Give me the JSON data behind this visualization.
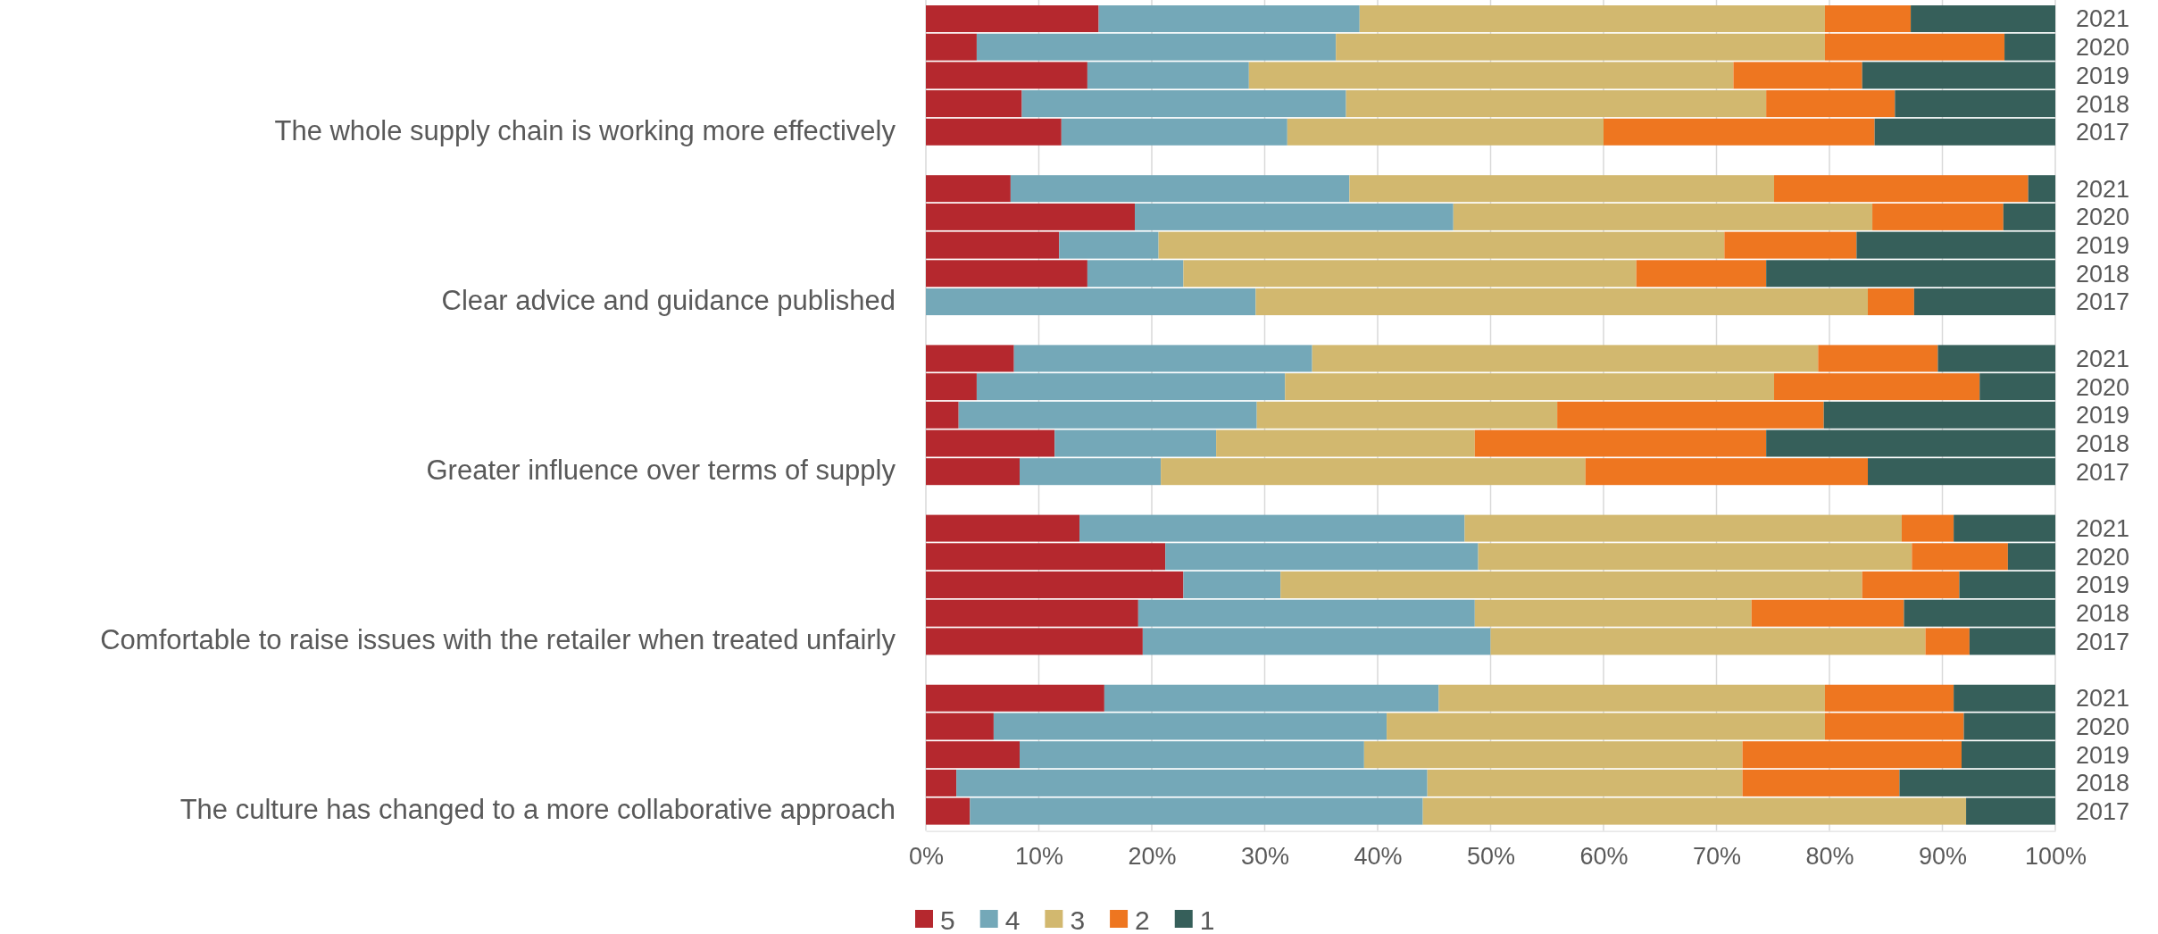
{
  "chart_data": {
    "type": "bar",
    "orientation": "horizontal",
    "stacked": true,
    "categories": [
      "2021",
      "2020",
      "2019",
      "2018",
      "2017",
      null,
      "2021",
      "2020",
      "2019",
      "2018",
      "2017",
      null,
      "2021",
      "2020",
      "2019",
      "2018",
      "2017",
      null,
      "2021",
      "2020",
      "2019",
      "2018",
      "2017",
      null,
      "2021",
      "2020",
      "2019",
      "2018",
      "2017"
    ],
    "annotations": [
      "The whole supply chain is working more effectively",
      "Clear advice and guidance published",
      "Greater influence over terms of supply",
      "Comfortable to raise issues with the retailer when treated unfairly",
      "The culture has changed to a more collaborative approach"
    ],
    "series": [
      {
        "name": "5",
        "color": "#b5282e",
        "values": [
          15.3,
          4.5,
          14.3,
          8.5,
          12,
          null,
          7.5,
          18.5,
          11.8,
          14.3,
          0,
          null,
          7.8,
          4.5,
          2.9,
          11.4,
          8.3,
          null,
          13.6,
          21.2,
          22.8,
          18.8,
          19.2,
          null,
          15.8,
          6,
          8.3,
          2.7,
          3.9
        ]
      },
      {
        "name": "4",
        "color": "#74a8b8",
        "values": [
          23.1,
          31.8,
          14.3,
          28.7,
          20,
          null,
          30,
          28.2,
          8.8,
          8.5,
          29.2,
          null,
          26.4,
          27.3,
          26.4,
          14.3,
          12.5,
          null,
          34.1,
          27.7,
          8.6,
          29.8,
          30.8,
          null,
          29.6,
          34.8,
          30.5,
          41.7,
          40.1
        ]
      },
      {
        "name": "3",
        "color": "#d2b86f",
        "values": [
          41.2,
          43.3,
          42.9,
          37.2,
          28,
          null,
          37.6,
          37.1,
          50.1,
          40.1,
          54.2,
          null,
          44.8,
          43.3,
          26.6,
          22.9,
          37.6,
          null,
          38.7,
          38.4,
          51.5,
          24.5,
          38.5,
          null,
          34.2,
          38.8,
          33.5,
          27.9,
          48.1
        ]
      },
      {
        "name": "2",
        "color": "#ee7620",
        "values": [
          7.6,
          15.9,
          11.4,
          11.4,
          24,
          null,
          22.5,
          11.6,
          11.7,
          11.5,
          4.1,
          null,
          10.6,
          18.2,
          23.6,
          25.8,
          25,
          null,
          4.6,
          8.5,
          8.6,
          13.5,
          3.9,
          null,
          11.4,
          12.3,
          19.4,
          13.9,
          0
        ]
      },
      {
        "name": "1",
        "color": "#365f5a",
        "values": [
          12.8,
          4.5,
          17.1,
          14.2,
          16,
          null,
          2.4,
          4.6,
          17.6,
          25.6,
          12.5,
          null,
          10.4,
          6.7,
          20.5,
          25.6,
          16.6,
          null,
          9,
          4.2,
          8.5,
          13.4,
          7.6,
          null,
          9,
          8.1,
          8.3,
          13.8,
          7.9
        ]
      }
    ],
    "xlim": [
      0,
      100
    ],
    "xticks": [
      {
        "value": 0,
        "label": "0%"
      },
      {
        "value": 10,
        "label": "10%"
      },
      {
        "value": 20,
        "label": "20%"
      },
      {
        "value": 30,
        "label": "30%"
      },
      {
        "value": 40,
        "label": "40%"
      },
      {
        "value": 50,
        "label": "50%"
      },
      {
        "value": 60,
        "label": "60%"
      },
      {
        "value": 70,
        "label": "70%"
      },
      {
        "value": 80,
        "label": "80%"
      },
      {
        "value": 90,
        "label": "90%"
      },
      {
        "value": 100,
        "label": "100%"
      }
    ],
    "grid": "x",
    "legend": "bottom"
  }
}
